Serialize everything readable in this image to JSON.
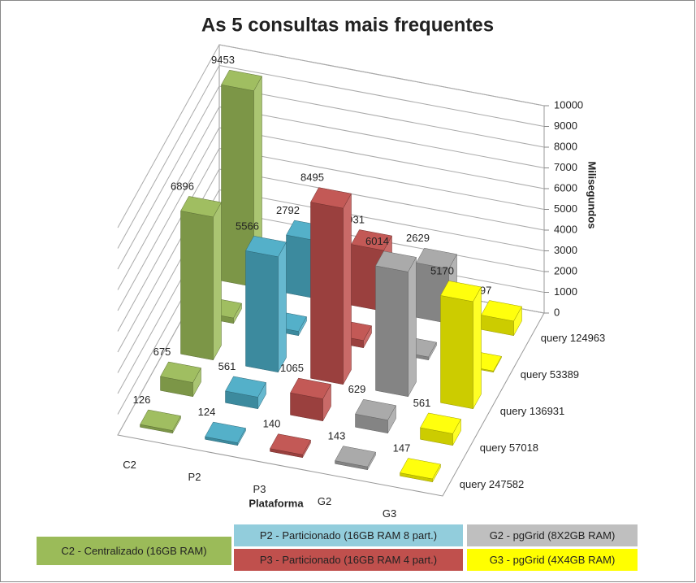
{
  "chart_data": {
    "type": "bar3d",
    "title": "As 5 consultas mais frequentes",
    "y_label": "Milisegundos",
    "x_label": "Plataforma",
    "categories": [
      "C2",
      "P2",
      "P3",
      "G2",
      "G3"
    ],
    "colors": [
      "#9bbb59",
      "#4bacc6",
      "#c0504d",
      "#a5a5a5",
      "#ffff00"
    ],
    "series": [
      {
        "name": "query 124963",
        "values": [
          9453,
          2792,
          2931,
          2629,
          697
        ]
      },
      {
        "name": "query 53389",
        "values": [
          261,
          203,
          353,
          145,
          57
        ]
      },
      {
        "name": "query 136931",
        "values": [
          6896,
          5566,
          8495,
          6014,
          5170
        ]
      },
      {
        "name": "query 57018",
        "values": [
          675,
          561,
          1065,
          629,
          561
        ]
      },
      {
        "name": "query 247582",
        "values": [
          126,
          124,
          140,
          143,
          147
        ]
      }
    ],
    "ylim": [
      0,
      10000
    ],
    "yticks": [
      0,
      1000,
      2000,
      3000,
      4000,
      5000,
      6000,
      7000,
      8000,
      9000,
      10000
    ],
    "grid": true,
    "legend": [
      {
        "label": "C2 - Centralizado (16GB RAM)",
        "color": "#9bbb59"
      },
      {
        "label": "P2 - Particionado (16GB RAM 8 part.)",
        "color": "#92cddc"
      },
      {
        "label": "P3 - Particionado (16GB RAM 4 part.)",
        "color": "#c0504d"
      },
      {
        "label": "G2 - pgGrid (8X2GB RAM)",
        "color": "#bfbfbf"
      },
      {
        "label": "G3 - pgGrid (4X4GB RAM)",
        "color": "#ffff00"
      }
    ]
  }
}
